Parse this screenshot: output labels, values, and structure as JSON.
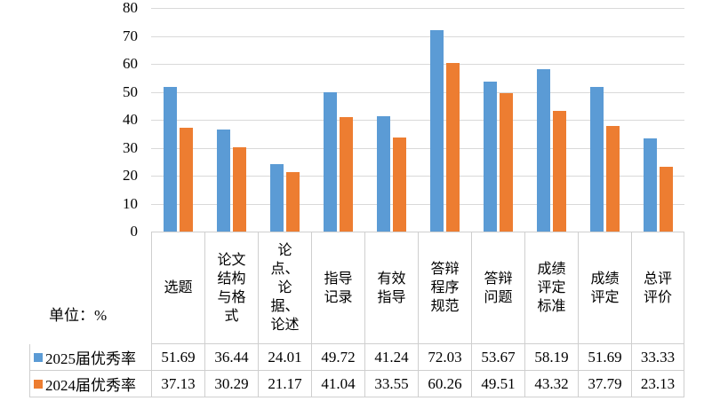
{
  "unit_label": "单位：%",
  "y_axis": {
    "ticks": [
      80,
      70,
      60,
      50,
      40,
      30,
      20,
      10,
      0
    ]
  },
  "chart_data": {
    "type": "bar",
    "categories": [
      "选题",
      "论文结构与格式",
      "论点、论据、论述",
      "指导记录",
      "有效指导",
      "答辩程序规范",
      "答辩问题",
      "成绩评定标准",
      "成绩评定",
      "总评评价"
    ],
    "series": [
      {
        "name": "2025届优秀率",
        "color": "#5B9BD5",
        "values": [
          51.69,
          36.44,
          24.01,
          49.72,
          41.24,
          72.03,
          53.67,
          58.19,
          51.69,
          33.33
        ]
      },
      {
        "name": "2024届优秀率",
        "color": "#ED7D31",
        "values": [
          37.13,
          30.29,
          21.17,
          41.04,
          33.55,
          60.26,
          49.51,
          43.32,
          37.79,
          23.13
        ]
      }
    ],
    "title": "",
    "xlabel": "",
    "ylabel": "单位：%",
    "ylim": [
      0,
      80
    ],
    "grid": true,
    "legend_position": "bottom-table"
  }
}
